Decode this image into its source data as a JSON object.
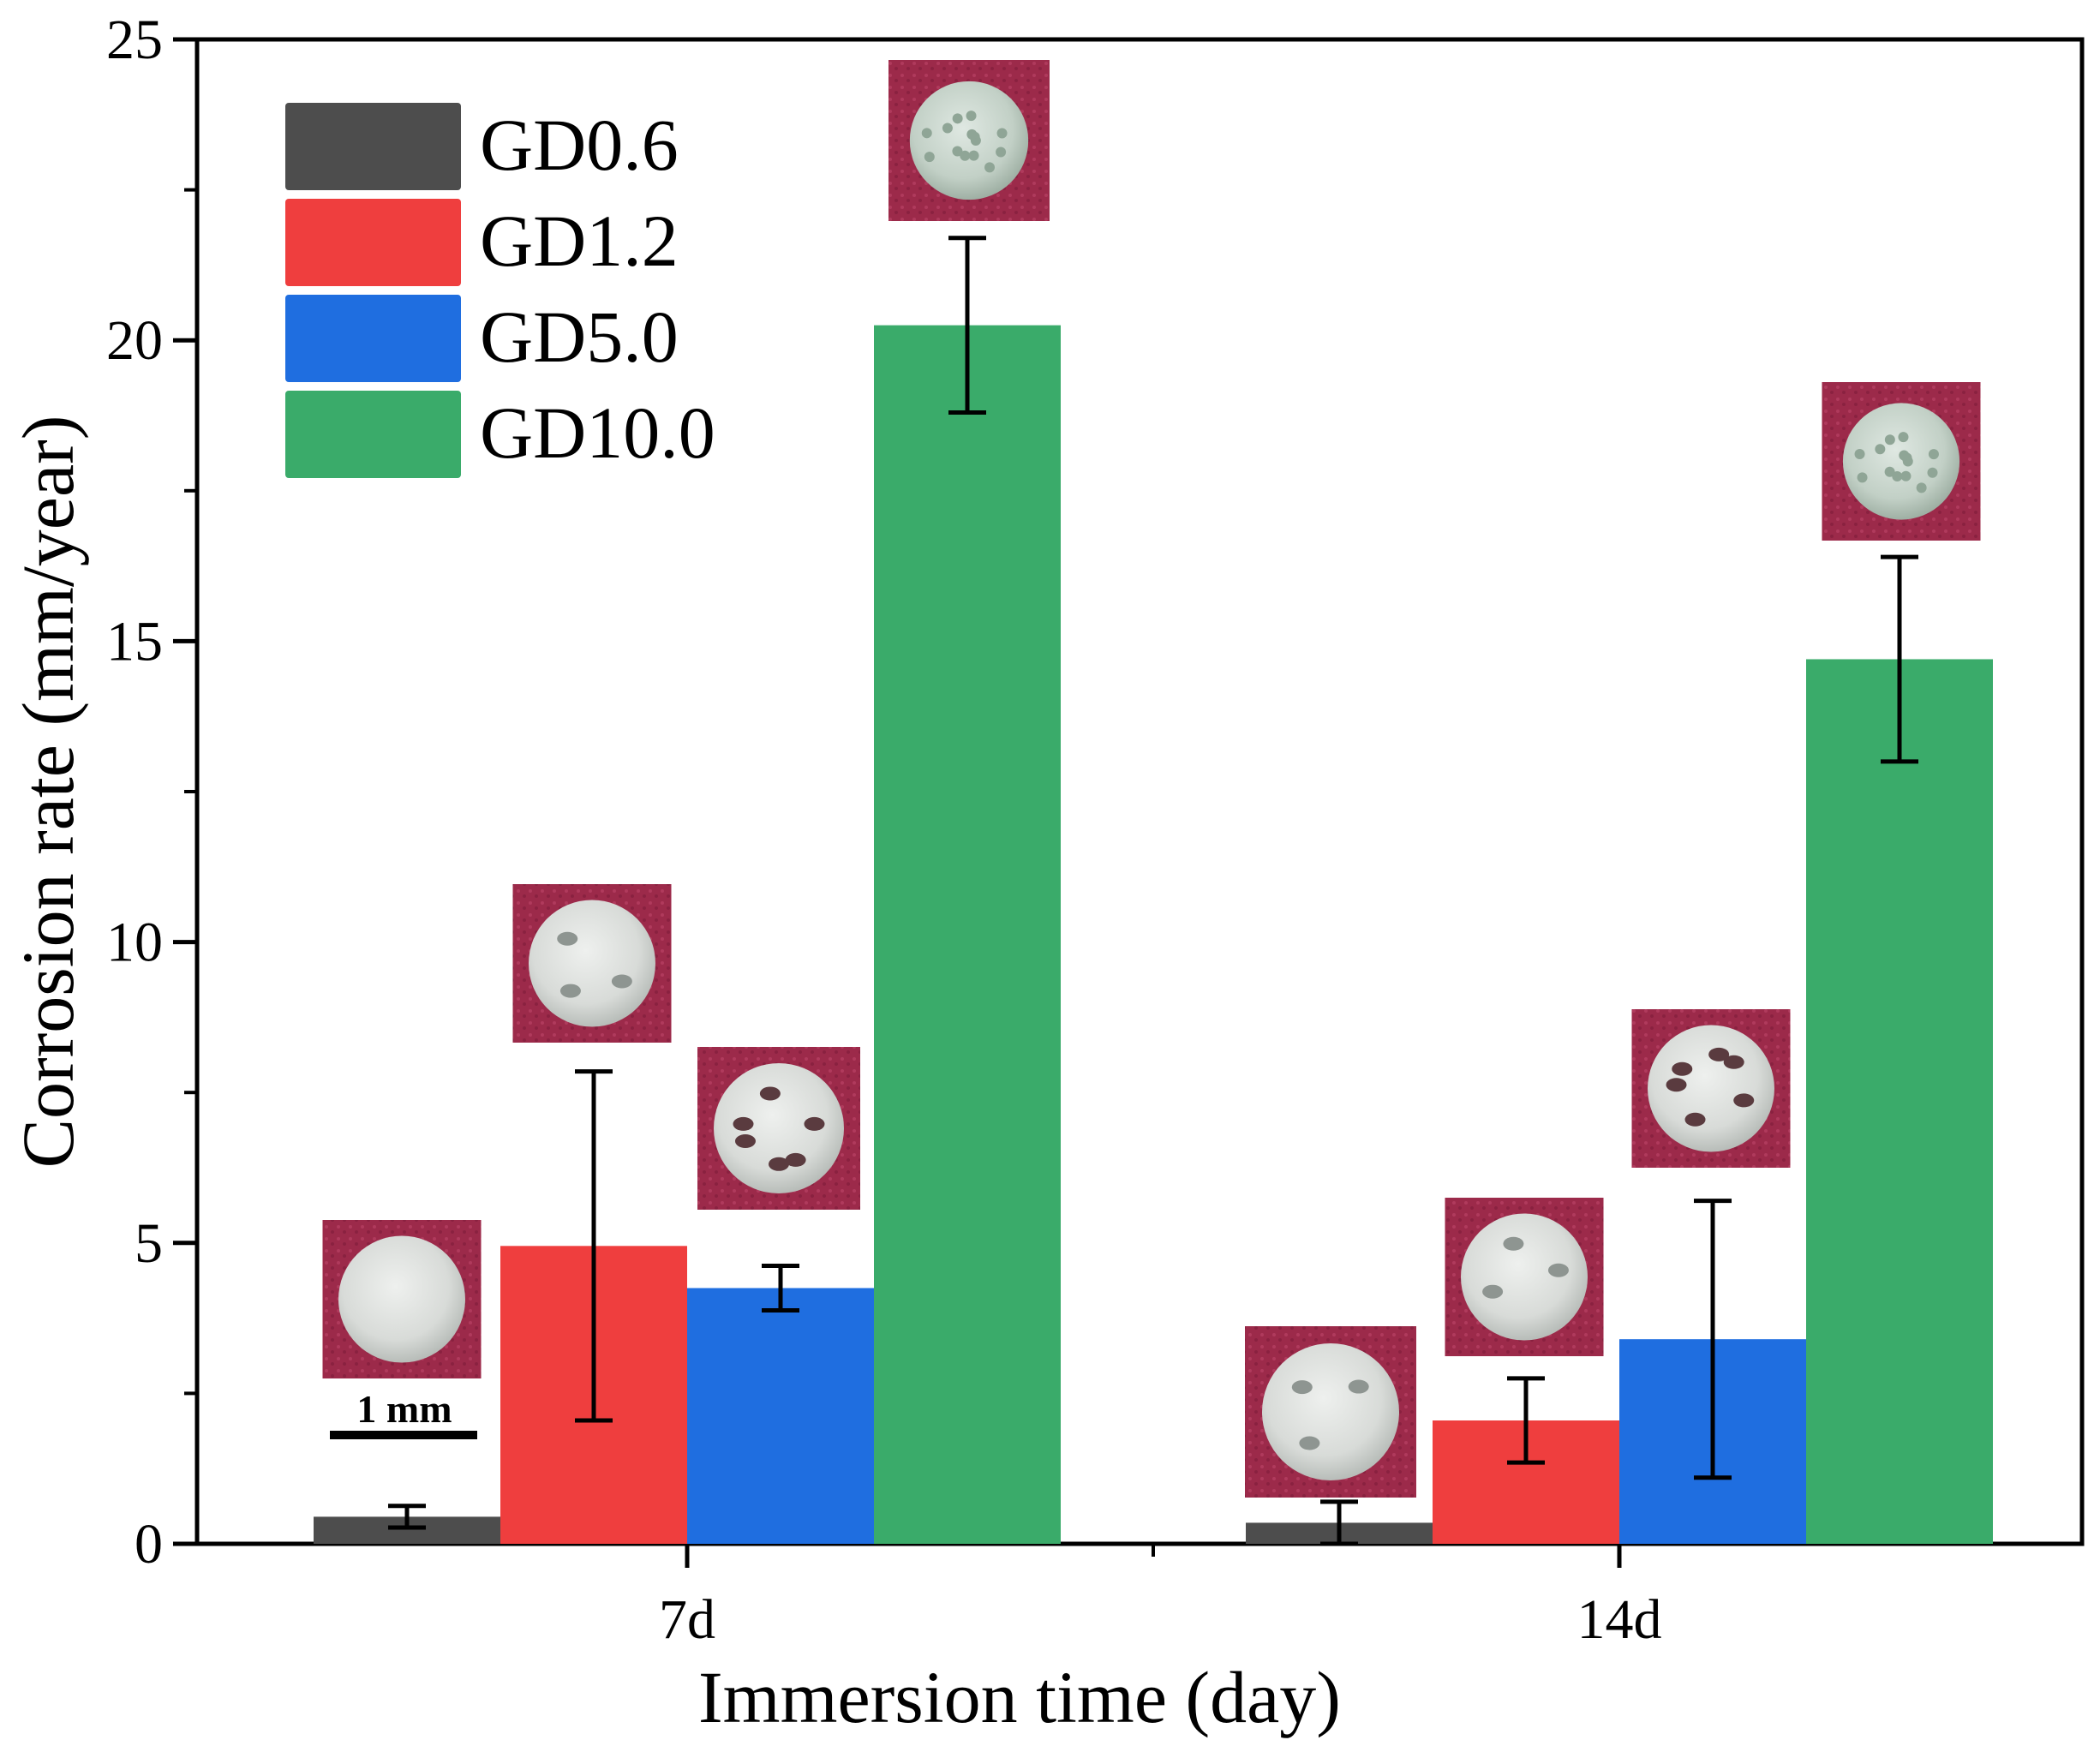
{
  "chart_data": {
    "type": "bar",
    "title": "",
    "xlabel": "Immersion time (day)",
    "ylabel": "Corrosion rate (mm/year)",
    "ylim": [
      0,
      25
    ],
    "yticks": [
      0,
      5,
      10,
      15,
      20,
      25
    ],
    "categories": [
      "7d",
      "14d"
    ],
    "grid": false,
    "legend_position": "top-left",
    "series": [
      {
        "name": "GD0.6",
        "color": "#4d4d4d",
        "values": [
          0.45,
          0.35
        ],
        "errors": [
          0.18,
          0.35
        ]
      },
      {
        "name": "GD1.2",
        "color": "#ef3e3e",
        "values": [
          4.95,
          2.05
        ],
        "errors": [
          2.9,
          0.7
        ]
      },
      {
        "name": "GD5.0",
        "color": "#1f6ee0",
        "values": [
          4.25,
          3.4
        ],
        "errors": [
          0.37,
          2.3
        ]
      },
      {
        "name": "GD10.0",
        "color": "#3aab6a",
        "values": [
          20.25,
          14.7
        ],
        "errors": [
          1.45,
          1.7
        ]
      }
    ],
    "annotations": {
      "scale_bar_label": "1 mm",
      "inset_photos": "sample photographs shown above each bar"
    }
  }
}
